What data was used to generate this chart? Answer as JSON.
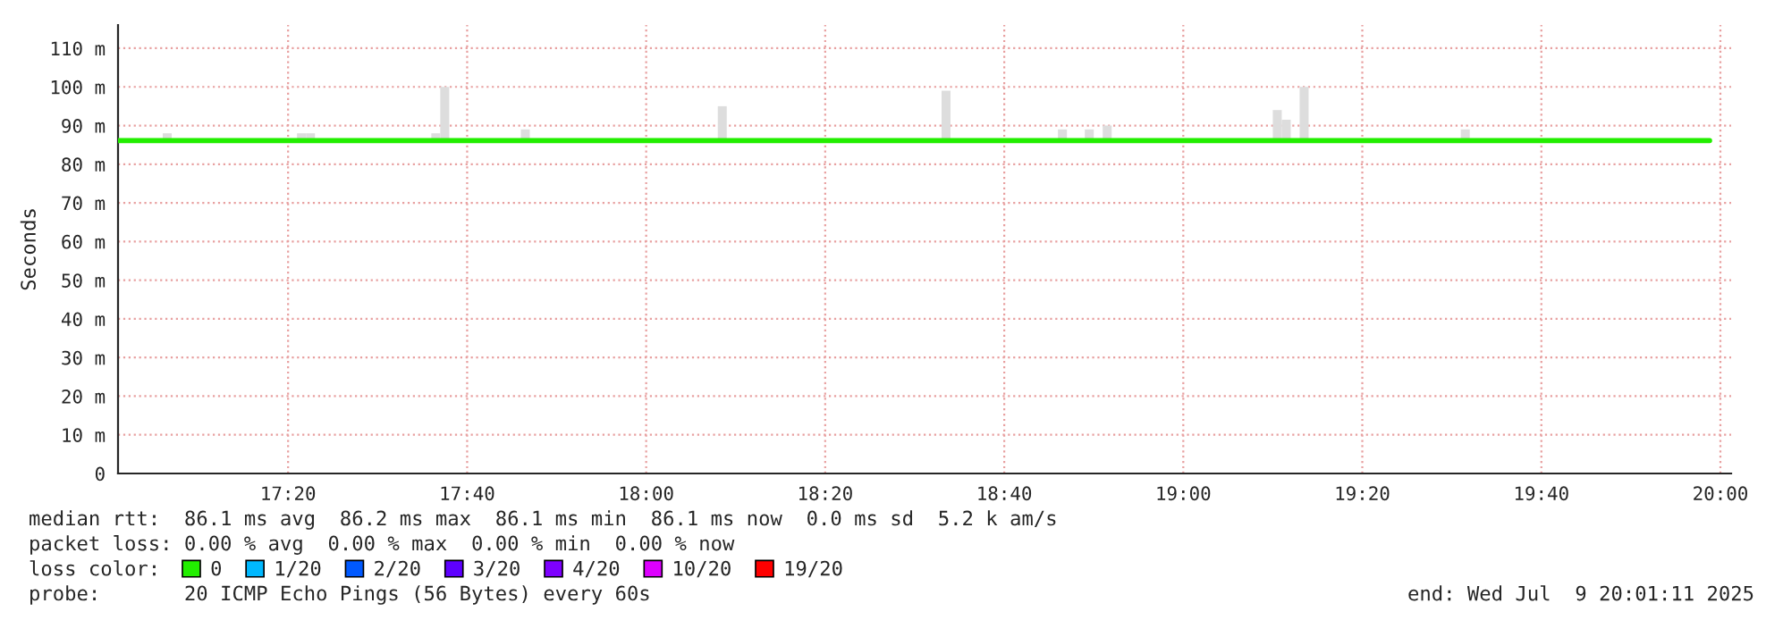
{
  "chart_data": {
    "type": "line",
    "ylabel": "Seconds",
    "xlim": [
      17.0167,
      20.02
    ],
    "ylim": [
      0,
      116
    ],
    "xticks": [
      {
        "value": 17.3333,
        "label": "17:20"
      },
      {
        "value": 17.6667,
        "label": "17:40"
      },
      {
        "value": 18,
        "label": "18:00"
      },
      {
        "value": 18.3333,
        "label": "18:20"
      },
      {
        "value": 18.6667,
        "label": "18:40"
      },
      {
        "value": 19,
        "label": "19:00"
      },
      {
        "value": 19.3333,
        "label": "19:20"
      },
      {
        "value": 19.6667,
        "label": "19:40"
      },
      {
        "value": 20,
        "label": "20:00"
      }
    ],
    "yticks": [
      0,
      {
        "value": 10,
        "label": "10 m"
      },
      {
        "value": 20,
        "label": "20 m"
      },
      {
        "value": 30,
        "label": "30 m"
      },
      {
        "value": 40,
        "label": "40 m"
      },
      {
        "value": 50,
        "label": "50 m"
      },
      {
        "value": 60,
        "label": "60 m"
      },
      {
        "value": 70,
        "label": "70 m"
      },
      {
        "value": 80,
        "label": "80 m"
      },
      {
        "value": 90,
        "label": "90 m"
      },
      {
        "value": 100,
        "label": "100 m"
      },
      {
        "value": 110,
        "label": "110 m"
      }
    ],
    "grid": true,
    "legend": "bottom",
    "legend_title": "loss color:",
    "series": [
      {
        "type": "bar",
        "color": "#dddddd",
        "x": [
          17.1083,
          17.3583,
          17.375,
          17.6083,
          17.625,
          17.775,
          18.1417,
          18.5583,
          18.775,
          18.825,
          18.8583,
          19.175,
          19.1917,
          19.225,
          19.525
        ],
        "base": [
          86,
          86,
          86,
          86,
          86,
          86,
          86,
          86,
          86,
          86,
          86,
          86,
          86,
          86,
          86
        ],
        "values": [
          2,
          2,
          2,
          2,
          14,
          3,
          9,
          13,
          3,
          3,
          4,
          8,
          5.5,
          14,
          3
        ]
      },
      {
        "name": "0",
        "color": "#22ee00",
        "x": [
          17.0167,
          19.98
        ],
        "values": [
          86.1,
          86.1
        ]
      },
      {
        "name": "1/20",
        "color": "#00b8ff"
      },
      {
        "name": "2/20",
        "color": "#0059ff"
      },
      {
        "name": "3/20",
        "color": "#5e00ff"
      },
      {
        "name": "4/20",
        "color": "#7e00ff"
      },
      {
        "name": "10/20",
        "color": "#dd00ff"
      },
      {
        "name": "19/20",
        "color": "#ff0000"
      }
    ],
    "annotations": [
      "median rtt:  86.1 ms avg  86.2 ms max  86.1 ms min  86.1 ms now  0.0 ms sd  5.2 k am/s",
      "packet loss: 0.00 % avg  0.00 % max  0.00 % min  0.00 % now",
      "probe:       20 ICMP Echo Pings (56 Bytes) every 60s",
      "end: Wed Jul  9 20:01:11 2025"
    ]
  }
}
